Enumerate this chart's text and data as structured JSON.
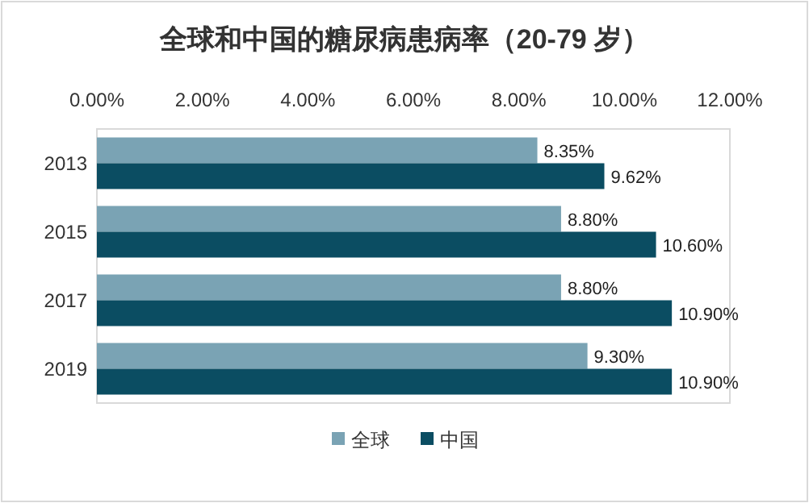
{
  "chart_data": {
    "type": "bar",
    "orientation": "horizontal",
    "title": "全球和中国的糖尿病患病率（20-79 岁）",
    "categories": [
      "2013",
      "2015",
      "2017",
      "2019"
    ],
    "series": [
      {
        "name": "全球",
        "color": "#7aa3b4",
        "values": [
          8.35,
          8.8,
          8.8,
          9.3
        ],
        "value_labels": [
          "8.35%",
          "8.80%",
          "8.80%",
          "9.30%"
        ]
      },
      {
        "name": "中国",
        "color": "#0b4d62",
        "values": [
          9.62,
          10.6,
          10.9,
          10.9
        ],
        "value_labels": [
          "9.62%",
          "10.60%",
          "10.90%",
          "10.90%"
        ]
      }
    ],
    "xlim": [
      0,
      12
    ],
    "xticks": [
      {
        "value": 0,
        "label": "0.00%"
      },
      {
        "value": 2,
        "label": "2.00%"
      },
      {
        "value": 4,
        "label": "4.00%"
      },
      {
        "value": 6,
        "label": "6.00%"
      },
      {
        "value": 8,
        "label": "8.00%"
      },
      {
        "value": 10,
        "label": "10.00%"
      },
      {
        "value": 12,
        "label": "12.00%"
      }
    ],
    "grid": false,
    "legend": "bottom"
  }
}
